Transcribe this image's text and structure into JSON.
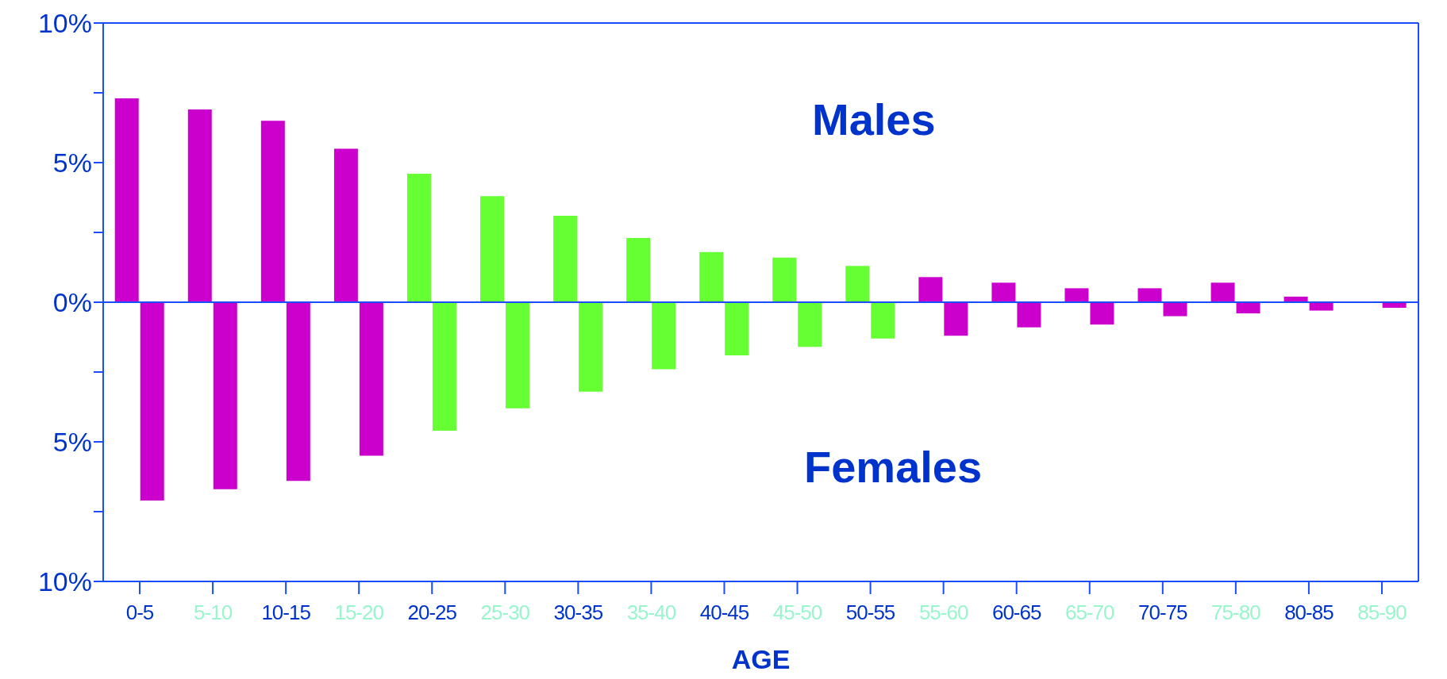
{
  "chart_data": {
    "type": "bar",
    "xlabel": "AGE",
    "categories": [
      "0-5",
      "5-10",
      "10-15",
      "15-20",
      "20-25",
      "25-30",
      "30-35",
      "35-40",
      "40-45",
      "45-50",
      "50-55",
      "55-60",
      "60-65",
      "65-70",
      "70-75",
      "75-80",
      "80-85",
      "85-90"
    ],
    "series": [
      {
        "values": [
          7.3,
          6.9,
          6.5,
          5.5,
          4.6,
          3.8,
          3.1,
          2.3,
          1.8,
          1.6,
          1.3,
          0.9,
          0.7,
          0.5,
          0.5,
          0.7,
          0.2,
          null
        ],
        "colors": [
          "#cc00cc",
          "#cc00cc",
          "#cc00cc",
          "#cc00cc",
          "#66ff33",
          "#66ff33",
          "#66ff33",
          "#66ff33",
          "#66ff33",
          "#66ff33",
          "#66ff33",
          "#cc00cc",
          "#cc00cc",
          "#cc00cc",
          "#cc00cc",
          "#cc00cc",
          "#cc00cc",
          "#cc00cc"
        ]
      },
      {
        "values": [
          -7.1,
          -6.7,
          -6.4,
          -5.5,
          -4.6,
          -3.8,
          -3.2,
          -2.4,
          -1.9,
          -1.6,
          -1.3,
          -1.2,
          -0.9,
          -0.8,
          -0.5,
          -0.4,
          -0.3,
          -0.2
        ],
        "colors": [
          "#cc00cc",
          "#cc00cc",
          "#cc00cc",
          "#cc00cc",
          "#66ff33",
          "#66ff33",
          "#66ff33",
          "#66ff33",
          "#66ff33",
          "#66ff33",
          "#66ff33",
          "#cc00cc",
          "#cc00cc",
          "#cc00cc",
          "#cc00cc",
          "#cc00cc",
          "#cc00cc",
          "#cc00cc"
        ]
      }
    ],
    "ylim": [
      -10,
      10
    ],
    "yticks": [
      {
        "value": -10,
        "label": "10%"
      },
      {
        "value": -7.5,
        "label": null
      },
      {
        "value": -5,
        "label": "5%"
      },
      {
        "value": -2.5,
        "label": null
      },
      {
        "value": 0,
        "label": "0%"
      },
      {
        "value": 2.5,
        "label": null
      },
      {
        "value": 5,
        "label": "5%"
      },
      {
        "value": 7.5,
        "label": null
      },
      {
        "value": 10,
        "label": "10%"
      }
    ],
    "ref_lines": [
      {
        "axis": "y",
        "value": 0,
        "color": "#1a4dff"
      }
    ],
    "annotations": [
      "Males",
      "Females"
    ]
  }
}
